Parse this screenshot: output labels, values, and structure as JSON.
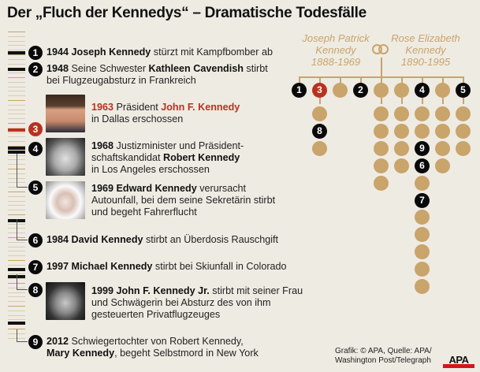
{
  "title": "Der „Fluch der Kennedys“ – Dramatische Todesfälle",
  "colors": {
    "accent_red": "#b8321f",
    "gold": "#c9a46b",
    "black": "#0a0a0a",
    "background": "#eeebe3",
    "logo_red": "#d4161c"
  },
  "events": [
    {
      "num": "1",
      "year": "1944",
      "parts": [
        " ",
        "Joseph Kennedy",
        " stürzt mit Kampfbomber ab"
      ],
      "line1_pre": "1944",
      "name": "Joseph Kennedy",
      "line1_post": " stürzt mit Kampfbomber ab",
      "line2": "",
      "line3": ""
    },
    {
      "num": "2",
      "year": "1948",
      "line1_pre": " Seine Schwester ",
      "name": "Kathleen Cavendish",
      "line1_post": " stirbt",
      "line2": "bei Flugzeugabsturz in Frankreich",
      "line3": ""
    },
    {
      "num": "3",
      "year": "1963",
      "line1_pre": " Präsident ",
      "name": "John F. Kennedy",
      "line1_post": "",
      "line2": "in Dallas erschossen",
      "line3": "",
      "highlight": true,
      "photo": "jfk-photo"
    },
    {
      "num": "4",
      "year": "1968",
      "line1_pre": " Justizminister und Präsident-",
      "name": "",
      "line1_post": "",
      "line2_pre": "schaftskandidat ",
      "line2_name": "Robert Kennedy",
      "line3": "in Los Angeles erschossen",
      "photo": "rfk-photo"
    },
    {
      "num": "5",
      "year": "1969",
      "line1_pre": " ",
      "name": "Edward Kennedy",
      "line1_post": " verursacht",
      "line2": "Autounfall, bei dem seine Sekretärin stirbt",
      "line3": "und begeht Fahrerflucht",
      "photo": "ted-photo"
    },
    {
      "num": "6",
      "year": "1984",
      "line1_pre": " ",
      "name": "David Kennedy",
      "line1_post": " stirbt an Überdosis Rauschgift",
      "line2": "",
      "line3": ""
    },
    {
      "num": "7",
      "year": "1997",
      "line1_pre": " ",
      "name": "Michael Kennedy",
      "line1_post": " stirbt bei Skiunfall in Colorado",
      "line2": "",
      "line3": ""
    },
    {
      "num": "8",
      "year": "1999",
      "line1_pre": " ",
      "name": "John F. Kennedy Jr.",
      "line1_post": " stirbt mit seiner Frau",
      "line2": "und Schwägerin bei Absturz des von ihm",
      "line3": "gesteuerten Privatflugzeuges",
      "photo": "jfk-jr-photo"
    },
    {
      "num": "9",
      "year": "2012",
      "line1_pre": " Schwiegertochter von Robert Kennedy,",
      "name": "",
      "line1_post": "",
      "line2_name": "Mary Kennedy",
      "line2_post": ", begeht Selbstmord in New York",
      "line3": ""
    }
  ],
  "family_tree": {
    "father": {
      "first": "Joseph Patrick",
      "last": "Kennedy",
      "years": "1888-1969"
    },
    "mother": {
      "first": "Rose Elizabeth",
      "last": "Kennedy",
      "years": "1890-1995"
    },
    "rings_icon": "wedding-rings-icon",
    "children_columns": [
      {
        "child": "1",
        "type": "black",
        "descendants": []
      },
      {
        "child": "3",
        "type": "red",
        "descendants": [
          "tan",
          "8",
          "tan"
        ]
      },
      {
        "child": "",
        "type": "tan",
        "descendants": []
      },
      {
        "child": "2",
        "type": "black",
        "descendants": []
      },
      {
        "child": "",
        "type": "tan",
        "descendants": [
          "tan",
          "tan",
          "tan",
          "tan",
          "tan"
        ]
      },
      {
        "child": "",
        "type": "tan",
        "descendants": [
          "tan",
          "tan",
          "tan",
          "tan"
        ]
      },
      {
        "child": "4",
        "type": "black",
        "descendants": [
          "tan",
          "tan",
          "9",
          "6",
          "tan",
          "7",
          "tan",
          "tan",
          "tan",
          "tan",
          "tan"
        ]
      },
      {
        "child": "",
        "type": "tan",
        "descendants": [
          "tan",
          "tan",
          "tan",
          "tan"
        ]
      },
      {
        "child": "5",
        "type": "black",
        "descendants": [
          "tan",
          "tan",
          "tan"
        ]
      }
    ]
  },
  "credit": {
    "line1": "Grafik: © APA, Quelle: APA/",
    "line2": "Washington Post/Telegraph"
  },
  "logo": "APA"
}
